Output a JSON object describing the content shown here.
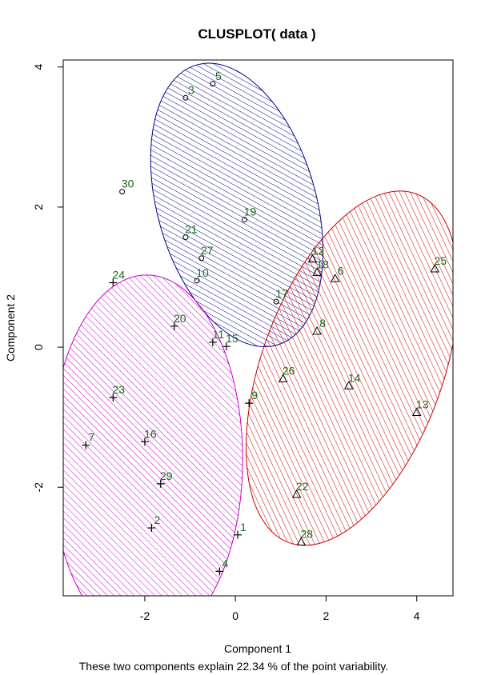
{
  "chart_data": {
    "type": "scatter",
    "title": "CLUSPLOT( data )",
    "xlabel": "Component 1",
    "ylabel": "Component 2",
    "caption": "These two components explain 22.34 % of the point variability.",
    "xlim": [
      -3.8,
      4.8
    ],
    "ylim": [
      -3.55,
      4.1
    ],
    "x_ticks": [
      -2,
      0,
      2,
      4
    ],
    "y_ticks": [
      -2,
      0,
      2,
      4
    ],
    "x_tick_labels": [
      "-2",
      "0",
      "2",
      "4"
    ],
    "y_tick_labels": [
      "-2",
      "0",
      "2",
      "4"
    ],
    "grid": false,
    "colors": {
      "label": "#1a6b1a",
      "cluster_1_ellipse": "#00008b",
      "cluster_2_ellipse": "#cc00cc",
      "cluster_3_ellipse": "#cc0000",
      "point": "#000000"
    },
    "clusters": [
      {
        "marker": "circle",
        "ellipse": {
          "cx": 0.03,
          "cy": 2.03,
          "rx": 1.75,
          "ry": 2.08,
          "rotation_deg": -16
        },
        "points": [
          {
            "label": "5",
            "x": -0.5,
            "y": 3.76
          },
          {
            "label": "3",
            "x": -1.1,
            "y": 3.56
          },
          {
            "label": "30",
            "x": -2.5,
            "y": 2.22
          },
          {
            "label": "19",
            "x": 0.2,
            "y": 1.82
          },
          {
            "label": "21",
            "x": -1.1,
            "y": 1.57
          },
          {
            "label": "27",
            "x": -0.75,
            "y": 1.27
          },
          {
            "label": "10",
            "x": -0.85,
            "y": 0.95
          },
          {
            "label": "17",
            "x": 0.9,
            "y": 0.65
          }
        ]
      },
      {
        "marker": "plus",
        "ellipse": {
          "cx": -1.96,
          "cy": -1.6,
          "rx": 2.12,
          "ry": 2.63,
          "rotation_deg": 0
        },
        "points": [
          {
            "label": "24",
            "x": -2.7,
            "y": 0.92
          },
          {
            "label": "20",
            "x": -1.35,
            "y": 0.3
          },
          {
            "label": "11",
            "x": -0.5,
            "y": 0.07
          },
          {
            "label": "15",
            "x": -0.2,
            "y": 0.01
          },
          {
            "label": "23",
            "x": -2.7,
            "y": -0.72
          },
          {
            "label": "9",
            "x": 0.3,
            "y": -0.8
          },
          {
            "label": "7",
            "x": -3.3,
            "y": -1.4
          },
          {
            "label": "16",
            "x": -2.0,
            "y": -1.35
          },
          {
            "label": "29",
            "x": -1.65,
            "y": -1.95
          },
          {
            "label": "2",
            "x": -1.85,
            "y": -2.58
          },
          {
            "label": "1",
            "x": 0.05,
            "y": -2.68
          },
          {
            "label": "4",
            "x": -0.35,
            "y": -3.2
          }
        ]
      },
      {
        "marker": "triangle",
        "ellipse": {
          "cx": 2.58,
          "cy": -0.3,
          "rx": 2.0,
          "ry": 2.65,
          "rotation_deg": 20
        },
        "points": [
          {
            "label": "12",
            "x": 1.7,
            "y": 1.26
          },
          {
            "label": "18",
            "x": 1.8,
            "y": 1.07
          },
          {
            "label": "6",
            "x": 2.2,
            "y": 0.98
          },
          {
            "label": "25",
            "x": 4.4,
            "y": 1.12
          },
          {
            "label": "8",
            "x": 1.8,
            "y": 0.23
          },
          {
            "label": "26",
            "x": 1.05,
            "y": -0.45
          },
          {
            "label": "14",
            "x": 2.5,
            "y": -0.55
          },
          {
            "label": "13",
            "x": 4.0,
            "y": -0.93
          },
          {
            "label": "22",
            "x": 1.35,
            "y": -2.1
          },
          {
            "label": "28",
            "x": 1.45,
            "y": -2.78
          }
        ]
      }
    ]
  }
}
